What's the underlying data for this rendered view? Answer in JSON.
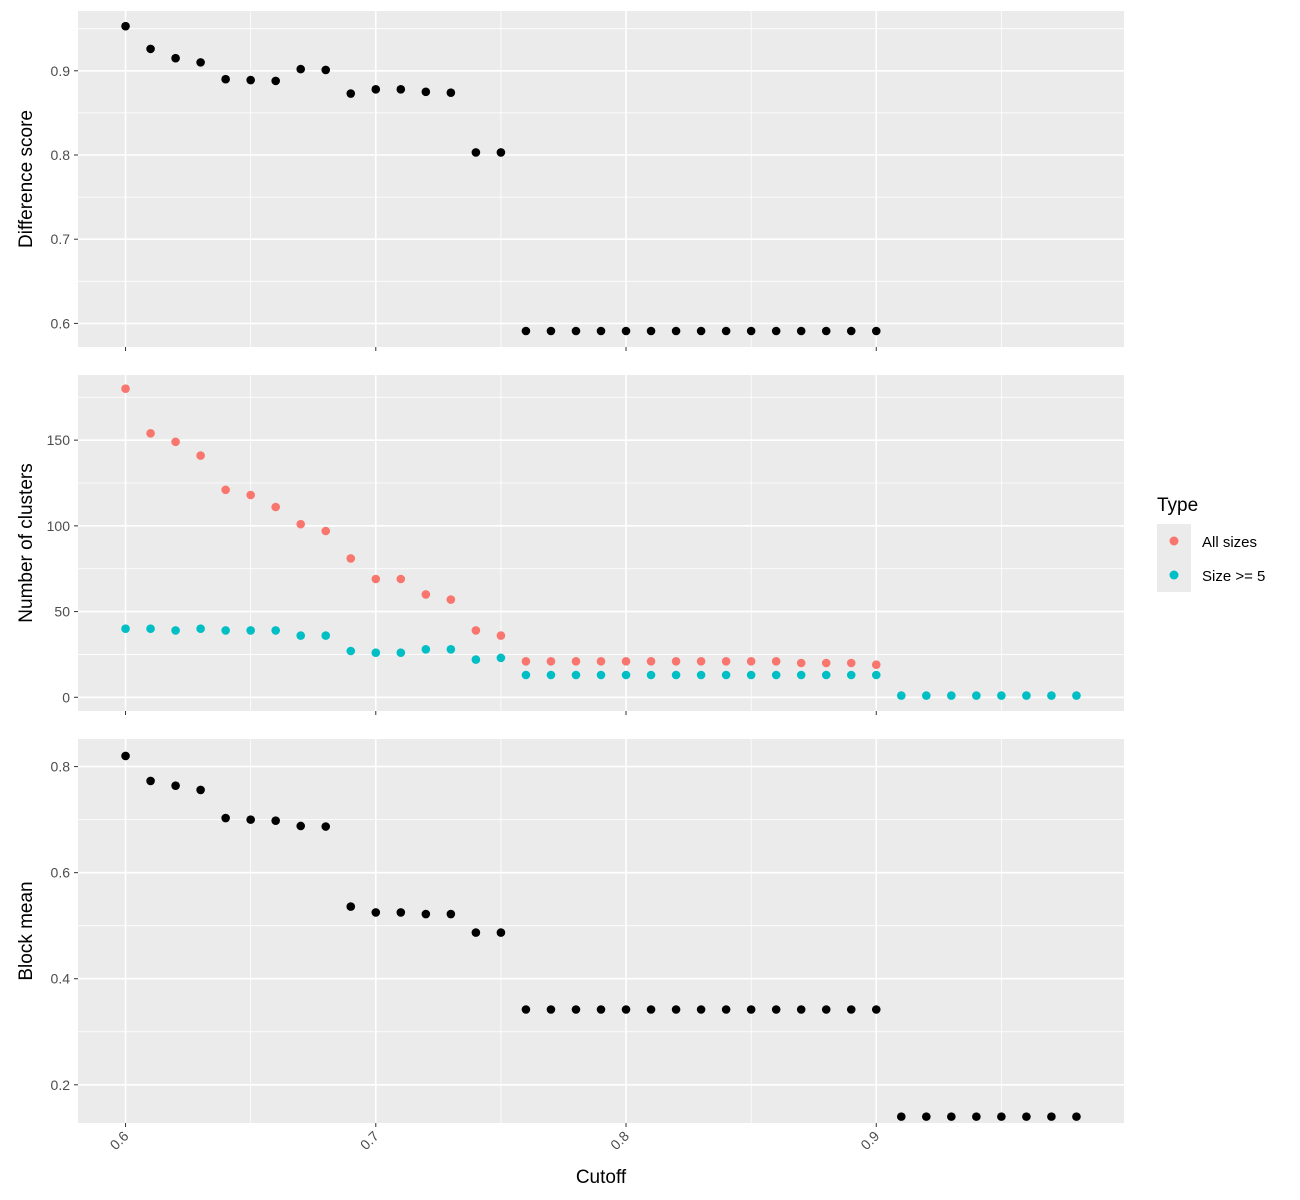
{
  "chart_data": {
    "type": "scatter",
    "xlabel": "Cutoff",
    "x_ticks": [
      "0.6",
      "0.7",
      "0.8",
      "0.9"
    ],
    "x_tick_values": [
      0.6,
      0.7,
      0.8,
      0.9
    ],
    "xlim": [
      0.581,
      0.999
    ],
    "colors": {
      "all_sizes": "#F8766D",
      "size_ge_5": "#00BFC4",
      "black": "#000000",
      "panel_bg": "#EBEBEB",
      "grid": "#FFFFFF"
    },
    "legend": {
      "title": "Type",
      "position": "right",
      "items": [
        {
          "label": "All sizes",
          "color": "#F8766D"
        },
        {
          "label": "Size >= 5",
          "color": "#00BFC4"
        }
      ]
    },
    "panels": [
      {
        "ylabel": "Difference score",
        "ylim": [
          0.572,
          0.971
        ],
        "y_ticks": [
          "0.6",
          "0.7",
          "0.8",
          "0.9"
        ],
        "y_tick_values": [
          0.6,
          0.7,
          0.8,
          0.9
        ],
        "series": [
          {
            "color": "#000000",
            "x": [
              0.6,
              0.61,
              0.62,
              0.63,
              0.64,
              0.65,
              0.66,
              0.67,
              0.68,
              0.69,
              0.7,
              0.71,
              0.72,
              0.73,
              0.74,
              0.75,
              0.76,
              0.77,
              0.78,
              0.79,
              0.8,
              0.81,
              0.82,
              0.83,
              0.84,
              0.85,
              0.86,
              0.87,
              0.88,
              0.89,
              0.9
            ],
            "y": [
              0.953,
              0.926,
              0.915,
              0.91,
              0.89,
              0.889,
              0.888,
              0.902,
              0.901,
              0.873,
              0.878,
              0.878,
              0.875,
              0.874,
              0.803,
              0.803,
              0.591,
              0.591,
              0.591,
              0.591,
              0.591,
              0.591,
              0.591,
              0.591,
              0.591,
              0.591,
              0.591,
              0.591,
              0.591,
              0.591,
              0.591
            ]
          }
        ]
      },
      {
        "ylabel": "Number of clusters",
        "ylim": [
          -8,
          188
        ],
        "y_ticks": [
          "0",
          "50",
          "100",
          "150"
        ],
        "y_tick_values": [
          0,
          50,
          100,
          150
        ],
        "series": [
          {
            "name": "All sizes",
            "color": "#F8766D",
            "x": [
              0.6,
              0.61,
              0.62,
              0.63,
              0.64,
              0.65,
              0.66,
              0.67,
              0.68,
              0.69,
              0.7,
              0.71,
              0.72,
              0.73,
              0.74,
              0.75,
              0.76,
              0.77,
              0.78,
              0.79,
              0.8,
              0.81,
              0.82,
              0.83,
              0.84,
              0.85,
              0.86,
              0.87,
              0.88,
              0.89,
              0.9
            ],
            "y": [
              180,
              154,
              149,
              141,
              121,
              118,
              111,
              101,
              97,
              81,
              69,
              69,
              60,
              57,
              39,
              36,
              21,
              21,
              21,
              21,
              21,
              21,
              21,
              21,
              21,
              21,
              21,
              20,
              20,
              20,
              19
            ]
          },
          {
            "name": "Size >= 5",
            "color": "#00BFC4",
            "x": [
              0.6,
              0.61,
              0.62,
              0.63,
              0.64,
              0.65,
              0.66,
              0.67,
              0.68,
              0.69,
              0.7,
              0.71,
              0.72,
              0.73,
              0.74,
              0.75,
              0.76,
              0.77,
              0.78,
              0.79,
              0.8,
              0.81,
              0.82,
              0.83,
              0.84,
              0.85,
              0.86,
              0.87,
              0.88,
              0.89,
              0.9,
              0.91,
              0.92,
              0.93,
              0.94,
              0.95,
              0.96,
              0.97,
              0.98
            ],
            "y": [
              40,
              40,
              39,
              40,
              39,
              39,
              39,
              36,
              36,
              27,
              26,
              26,
              28,
              28,
              22,
              23,
              13,
              13,
              13,
              13,
              13,
              13,
              13,
              13,
              13,
              13,
              13,
              13,
              13,
              13,
              13,
              1,
              1,
              1,
              1,
              1,
              1,
              1,
              1
            ]
          }
        ]
      },
      {
        "ylabel": "Block mean",
        "ylim": [
          0.128,
          0.852
        ],
        "y_ticks": [
          "0.2",
          "0.4",
          "0.6",
          "0.8"
        ],
        "y_tick_values": [
          0.2,
          0.4,
          0.6,
          0.8
        ],
        "series": [
          {
            "color": "#000000",
            "x": [
              0.6,
              0.61,
              0.62,
              0.63,
              0.64,
              0.65,
              0.66,
              0.67,
              0.68,
              0.69,
              0.7,
              0.71,
              0.72,
              0.73,
              0.74,
              0.75,
              0.76,
              0.77,
              0.78,
              0.79,
              0.8,
              0.81,
              0.82,
              0.83,
              0.84,
              0.85,
              0.86,
              0.87,
              0.88,
              0.89,
              0.9,
              0.91,
              0.92,
              0.93,
              0.94,
              0.95,
              0.96,
              0.97,
              0.98
            ],
            "y": [
              0.82,
              0.773,
              0.764,
              0.756,
              0.703,
              0.7,
              0.698,
              0.688,
              0.687,
              0.536,
              0.525,
              0.525,
              0.522,
              0.522,
              0.487,
              0.487,
              0.342,
              0.342,
              0.342,
              0.342,
              0.342,
              0.342,
              0.342,
              0.342,
              0.342,
              0.342,
              0.342,
              0.342,
              0.342,
              0.342,
              0.342,
              0.14,
              0.14,
              0.14,
              0.14,
              0.14,
              0.14,
              0.14,
              0.14
            ]
          }
        ]
      }
    ]
  }
}
